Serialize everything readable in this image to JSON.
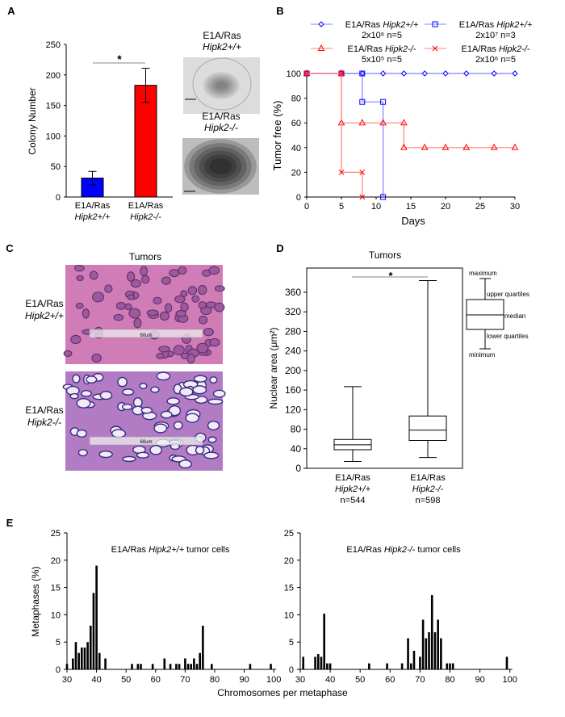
{
  "panel_labels": [
    "A",
    "B",
    "C",
    "D",
    "E"
  ],
  "colors": {
    "blue": "#0000ff",
    "red": "#ff0000",
    "blue_line": "#7b7bff",
    "red_line": "#ff7b7b",
    "histology_pink": "#c86fb4",
    "nuclei": "#4a2a78"
  },
  "panel_a_images": {
    "top_label": [
      "E1A/Ras",
      "Hipk2+/+"
    ],
    "bottom_label": [
      "E1A/Ras",
      "Hipk2-/-"
    ]
  },
  "panel_c": {
    "title": "Tumors",
    "rows": [
      {
        "label": [
          "E1A/Ras",
          "Hipk2+/+"
        ],
        "scale_bar": "60um"
      },
      {
        "label": [
          "E1A/Ras",
          "Hipk2-/-"
        ],
        "scale_bar": "60um"
      }
    ]
  },
  "chart_data": [
    {
      "panel": "A",
      "type": "bar",
      "categories": [
        [
          "E1A/Ras",
          "Hipk2+/+"
        ],
        [
          "E1A/Ras",
          "Hipk2-/-"
        ]
      ],
      "values": [
        31,
        183
      ],
      "error_low": [
        20,
        155
      ],
      "error_high": [
        42,
        211
      ],
      "colors": [
        "#0000ff",
        "#ff0000"
      ],
      "ylabel": "Colony Number",
      "ylim": [
        0,
        250
      ],
      "yticks": [
        "0",
        "50",
        "100",
        "150",
        "200",
        "250"
      ],
      "significance": "*"
    },
    {
      "panel": "B",
      "type": "line",
      "xlabel": "Days",
      "ylabel": "Tumor free (%)",
      "xlim": [
        0,
        30
      ],
      "ylim": [
        0,
        100
      ],
      "xticks": [
        "0",
        "5",
        "10",
        "15",
        "20",
        "25",
        "30"
      ],
      "yticks": [
        "0",
        "20",
        "40",
        "60",
        "80",
        "100"
      ],
      "legend_placement": "top",
      "series": [
        {
          "name": [
            "E1A/Ras ",
            "Hipk2+/+",
            "2x10⁶ n=5"
          ],
          "marker": "diamond",
          "color": "#0000ff",
          "x": [
            0,
            5,
            8,
            11,
            14,
            17,
            20,
            23,
            27,
            30
          ],
          "y": [
            100,
            100,
            100,
            100,
            100,
            100,
            100,
            100,
            100,
            100
          ]
        },
        {
          "name": [
            "E1A/Ras ",
            "Hipk2+/+",
            "2x10⁷ n=3"
          ],
          "marker": "square",
          "color": "#0000ff",
          "x": [
            0,
            5,
            8,
            8,
            11,
            11
          ],
          "y": [
            100,
            100,
            100,
            77,
            77,
            0
          ]
        },
        {
          "name": [
            "E1A/Ras ",
            "Hipk2-/-",
            "5x10⁵ n=5"
          ],
          "marker": "triangle",
          "color": "#ff0000",
          "x": [
            0,
            5,
            5,
            8,
            11,
            14,
            14,
            17,
            20,
            23,
            27,
            30
          ],
          "y": [
            100,
            100,
            60,
            60,
            60,
            60,
            40,
            40,
            40,
            40,
            40,
            40
          ]
        },
        {
          "name": [
            "E1A/Ras ",
            "Hipk2-/-",
            "2x10⁶ n=5"
          ],
          "marker": "x",
          "color": "#ff0000",
          "x": [
            0,
            5,
            5,
            8,
            8
          ],
          "y": [
            100,
            100,
            20,
            20,
            0
          ]
        }
      ]
    },
    {
      "panel": "D",
      "type": "box",
      "title": "Tumors",
      "ylabel": "Nuclear area (μm²)",
      "ylim": [
        0,
        390
      ],
      "yticks": [
        "0",
        "40",
        "80",
        "120",
        "160",
        "200",
        "240",
        "280",
        "320",
        "360"
      ],
      "categories": [
        [
          "E1A/Ras",
          "Hipk2+/+",
          "n=544"
        ],
        [
          "E1A/Ras",
          "Hipk2-/-",
          "n=598"
        ]
      ],
      "boxes": [
        {
          "min": 14,
          "q1": 38,
          "median": 48,
          "q3": 59,
          "max": 167
        },
        {
          "min": 22,
          "q1": 57,
          "median": 78,
          "q3": 107,
          "max": 384
        }
      ],
      "significance": "*",
      "key_labels": [
        "maximum",
        "upper quartiles",
        "median",
        "lower quartiles",
        "minimum"
      ]
    },
    {
      "panel": "E-left",
      "type": "bar",
      "title": [
        "E1A/Ras ",
        "Hipk2+/+",
        " tumor cells"
      ],
      "ylabel": "Metaphases (%)",
      "xlim": [
        30,
        100
      ],
      "ylim": [
        0,
        25
      ],
      "xticks": [
        "30",
        "40",
        "50",
        "60",
        "70",
        "80",
        "90",
        "100"
      ],
      "yticks": [
        "0",
        "5",
        "10",
        "15",
        "20",
        "25"
      ],
      "x": [
        30,
        32,
        33,
        34,
        35,
        36,
        37,
        38,
        39,
        40,
        41,
        43,
        52,
        54,
        55,
        59,
        63,
        65,
        67,
        68,
        70,
        71,
        72,
        73,
        74,
        75,
        76,
        79,
        92,
        99
      ],
      "values": [
        1,
        2,
        5,
        3,
        4,
        4,
        5,
        8,
        14,
        19,
        3,
        2,
        1,
        1,
        1,
        1,
        2,
        1,
        1,
        1,
        2,
        1,
        1,
        2,
        1,
        3,
        8,
        1,
        1,
        1
      ]
    },
    {
      "panel": "E-right",
      "type": "bar",
      "title": [
        "E1A/Ras ",
        "Hipk2-/-",
        " tumor cells"
      ],
      "xlim": [
        30,
        100
      ],
      "ylim": [
        0,
        25
      ],
      "xticks": [
        "30",
        "40",
        "50",
        "60",
        "70",
        "80",
        "90",
        "100"
      ],
      "yticks": [
        "0",
        "5",
        "10",
        "15",
        "20",
        "25"
      ],
      "x": [
        31,
        35,
        36,
        37,
        38,
        39,
        40,
        53,
        59,
        64,
        66,
        67,
        68,
        70,
        71,
        72,
        73,
        74,
        75,
        76,
        77,
        79,
        80,
        81,
        99
      ],
      "values": [
        2.3,
        2.3,
        2.8,
        2.3,
        10.2,
        1.1,
        1.1,
        1.1,
        1.1,
        1.1,
        5.7,
        1.1,
        3.4,
        2.3,
        9.1,
        5.7,
        6.8,
        13.6,
        6.8,
        9.1,
        5.7,
        1.1,
        1.1,
        1.1,
        2.3
      ]
    }
  ],
  "panel_e_xlabel": "Chromosomes per metaphase"
}
